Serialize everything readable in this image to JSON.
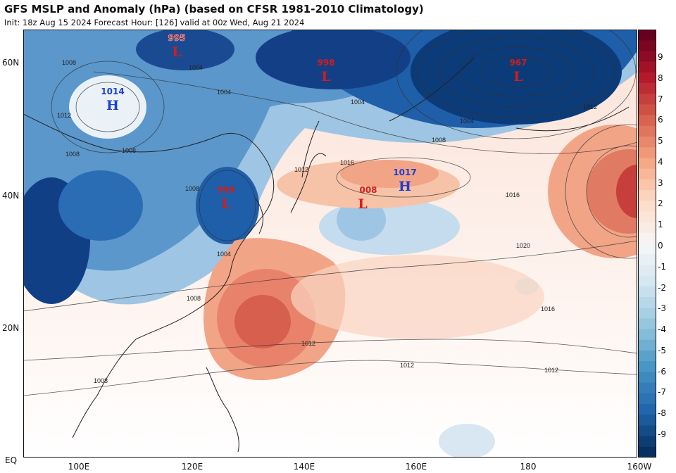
{
  "header": {
    "title": "GFS MSLP and Anomaly (hPa) (based on CFSR 1981-2010 Climatology)",
    "subtitle": "Init: 18z Aug 15 2024   Forecast Hour: [126]   valid at 00z Wed, Aug 21 2024"
  },
  "map": {
    "lat_labels": [
      "60N",
      "40N",
      "20N",
      "EQ"
    ],
    "lon_labels": [
      "100E",
      "120E",
      "140E",
      "160E",
      "180",
      "160W"
    ],
    "pressure_centers": [
      {
        "id": "low-nw",
        "type": "L",
        "symbol": "L",
        "value": "995",
        "color": "#d41c1c"
      },
      {
        "id": "low-n",
        "type": "L",
        "symbol": "L",
        "value": "998",
        "color": "#d41c1c"
      },
      {
        "id": "low-ne",
        "type": "L",
        "symbol": "L",
        "value": "967",
        "color": "#d41c1c"
      },
      {
        "id": "high-w",
        "type": "H",
        "symbol": "H",
        "value": "1014",
        "color": "#1a3fd1"
      },
      {
        "id": "low-korea",
        "type": "L",
        "symbol": "L",
        "value": "999",
        "color": "#d41c1c"
      },
      {
        "id": "high-c",
        "type": "H",
        "symbol": "H",
        "value": "1017",
        "color": "#1a3fd1"
      },
      {
        "id": "low-c",
        "type": "L",
        "symbol": "L",
        "value": "008",
        "color": "#d41c1c"
      }
    ],
    "isobar_labels": [
      "1008",
      "1004",
      "1012",
      "1008",
      "1004",
      "1008",
      "1004",
      "1012",
      "1004",
      "1008",
      "1016",
      "1012",
      "1016",
      "1020",
      "1016",
      "1012",
      "1012",
      "1012",
      "1008",
      "1008",
      "1004",
      "1008"
    ]
  },
  "colorbar": {
    "labels": [
      "9",
      "8",
      "7",
      "6",
      "5",
      "4",
      "3",
      "2",
      "1",
      "0",
      "-1",
      "-2",
      "-3",
      "-4",
      "-5",
      "-6",
      "-7",
      "-8",
      "-9"
    ],
    "colors": [
      "#67001f",
      "#b2182b",
      "#d6604d",
      "#f4a582",
      "#fddbc7",
      "#f7f7f7",
      "#d1e5f0",
      "#92c5de",
      "#4393c3",
      "#2166ac",
      "#053061"
    ]
  }
}
